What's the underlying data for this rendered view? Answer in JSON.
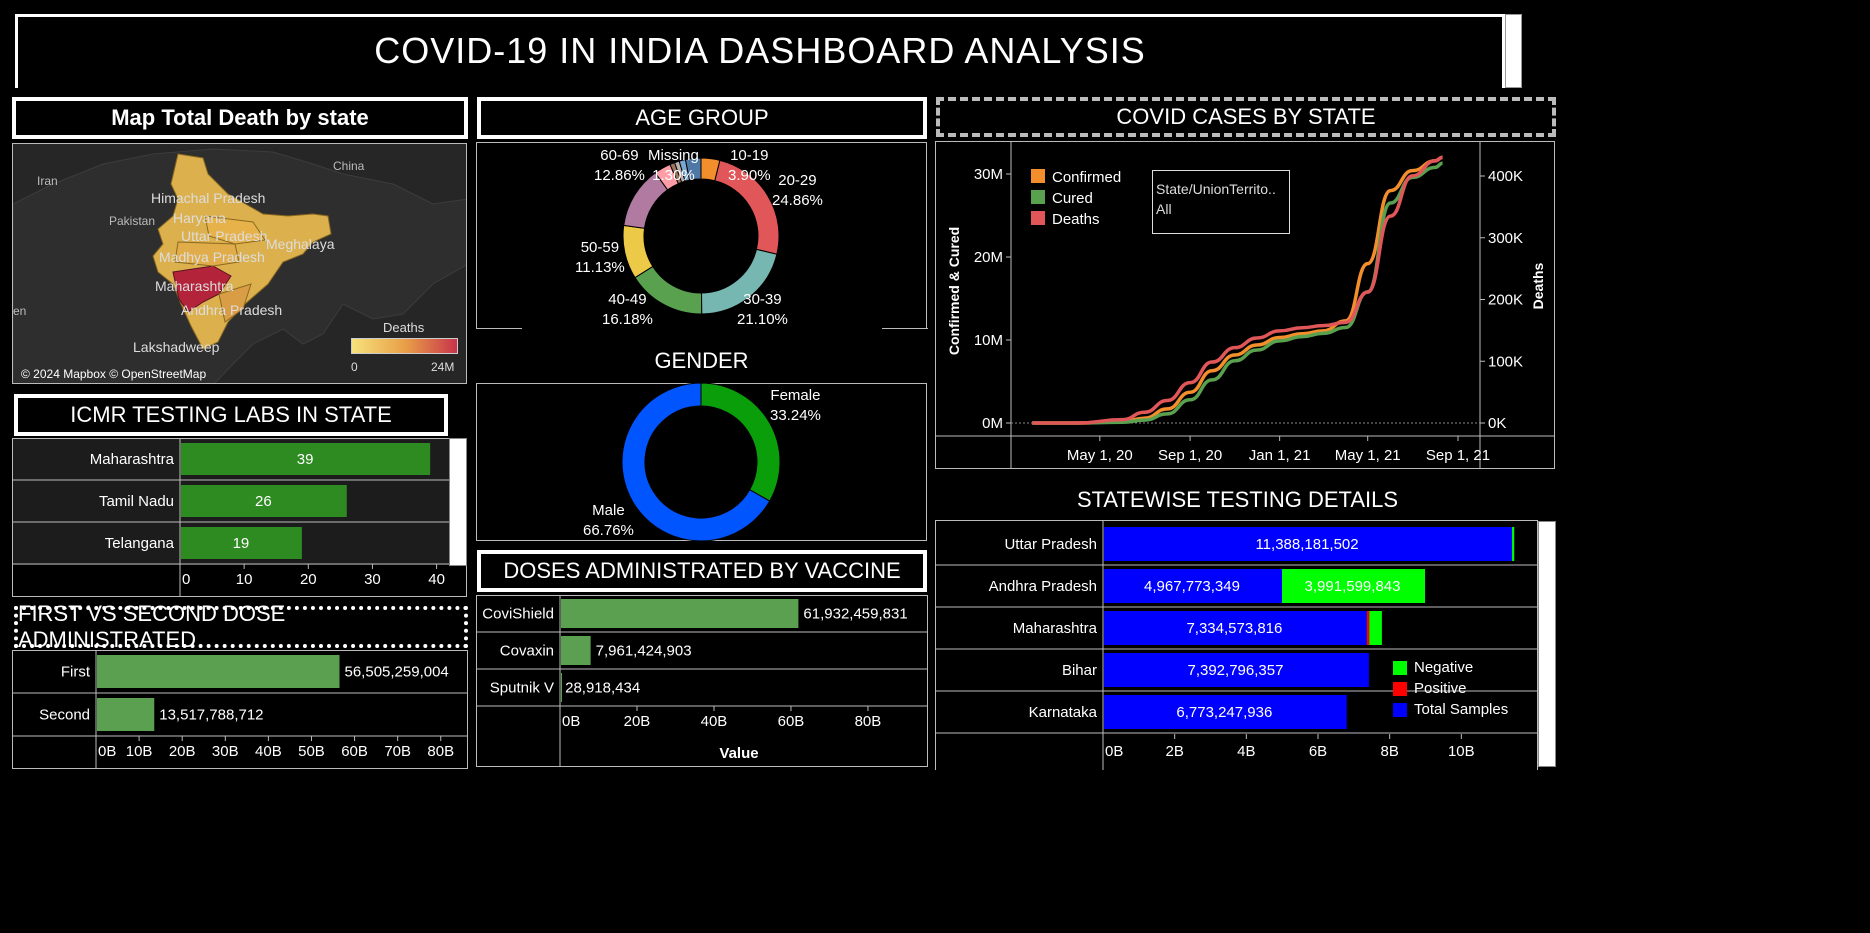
{
  "dashboard_title": "COVID-19 IN INDIA DASHBOARD ANALYSIS",
  "map_panel": {
    "title": "Map Total Death by state",
    "place_labels": [
      "Iran",
      "China",
      "Pakistan",
      "Himachal Pradesh",
      "Haryana",
      "Uttar Pradesh",
      "Meghalaya",
      "Madhya Pradesh",
      "Maharashtra",
      "Andhra Pradesh",
      "Lakshadweep",
      "en"
    ],
    "attribution": "© 2024 Mapbox © OpenStreetMap",
    "legend_title": "Deaths",
    "legend_min": "0",
    "legend_max": "24M"
  },
  "age_panel": {
    "title": "AGE GROUP",
    "slices": [
      {
        "label": "10-19",
        "pct": 3.9,
        "text": "3.90%",
        "color": "#f28e2b"
      },
      {
        "label": "20-29",
        "pct": 24.86,
        "text": "24.86%",
        "color": "#e15759"
      },
      {
        "label": "30-39",
        "pct": 21.1,
        "text": "21.10%",
        "color": "#76b7b2"
      },
      {
        "label": "40-49",
        "pct": 16.18,
        "text": "16.18%",
        "color": "#59a14f"
      },
      {
        "label": "50-59",
        "pct": 11.13,
        "text": "11.13%",
        "color": "#edc948"
      },
      {
        "label": "60-69",
        "pct": 12.86,
        "text": "12.86%",
        "color": "#b07aa1"
      },
      {
        "label": "",
        "pct": 3.47,
        "text": "",
        "color": "#ff9da7"
      },
      {
        "label": "",
        "pct": 1.0,
        "text": "",
        "color": "#9c755f"
      },
      {
        "label": "",
        "pct": 1.0,
        "text": "",
        "color": "#bab0ac"
      },
      {
        "label": "Missing",
        "pct": 1.3,
        "text": "1.30%",
        "color": "#7aa6d0"
      },
      {
        "label": "",
        "pct": 3.2,
        "text": "",
        "color": "#4e79a7"
      }
    ]
  },
  "gender_panel": {
    "title": "GENDER",
    "slices": [
      {
        "label": "Female",
        "pct": 33.24,
        "text": "33.24%",
        "color": "#0a9e0a"
      },
      {
        "label": "Male",
        "pct": 66.76,
        "text": "66.76%",
        "color": "#0055ff"
      }
    ]
  },
  "icmr_panel": {
    "title": "ICMR TESTING LABS IN STATE",
    "bar_color": "#2e8b22",
    "chart_data": {
      "type": "bar",
      "categories": [
        "Maharashtra",
        "Tamil Nadu",
        "Telangana"
      ],
      "values": [
        39,
        26,
        19
      ],
      "xlim": [
        0,
        41
      ],
      "ticks": [
        "0",
        "10",
        "20",
        "30",
        "40"
      ]
    }
  },
  "dose_panel": {
    "title": "FIRST VS SECOND DOSE ADMINISTRATED",
    "bar_color": "#5aa050",
    "chart_data": {
      "type": "bar",
      "categories": [
        "First",
        "Second"
      ],
      "values": [
        56505259004,
        13517788712
      ],
      "labels": [
        "56,505,259,004",
        "13,517,788,712"
      ],
      "xlim": [
        0,
        84000000000
      ],
      "ticks": [
        "0B",
        "10B",
        "20B",
        "30B",
        "40B",
        "50B",
        "60B",
        "70B",
        "80B"
      ]
    }
  },
  "vaccine_panel": {
    "title": "DOSES ADMINISTRATED BY VACCINE",
    "bar_color": "#5aa050",
    "chart_data": {
      "type": "bar",
      "categories": [
        "CoviShield",
        "Covaxin",
        "Sputnik V"
      ],
      "values": [
        61932459831,
        7961424903,
        28918434
      ],
      "labels": [
        "61,932,459,831",
        "7,961,424,903",
        "28,918,434"
      ],
      "xlim": [
        0,
        93000000000
      ],
      "ticks": [
        "0B",
        "20B",
        "40B",
        "60B",
        "80B"
      ],
      "xlabel": "Value"
    }
  },
  "cases_panel": {
    "title": "COVID CASES BY STATE",
    "filter_label": "State/UnionTerrito..",
    "filter_value": "All",
    "chart_data": {
      "type": "line",
      "x_ticks": [
        "May 1, 20",
        "Sep 1, 20",
        "Jan 1, 21",
        "May 1, 21",
        "Sep 1, 21"
      ],
      "x_tick_dates": [
        "2020-05-01",
        "2020-09-01",
        "2021-01-01",
        "2021-05-01",
        "2021-09-01"
      ],
      "ylabel": "Confirmed & Cured",
      "y2label": "Deaths",
      "y_ticks": [
        "0M",
        "10M",
        "20M",
        "30M"
      ],
      "y2_ticks": [
        "0K",
        "100K",
        "200K",
        "300K",
        "400K"
      ],
      "ylim": [
        0,
        30000000
      ],
      "y2lim": [
        0,
        400000
      ],
      "legend_position": "top-left",
      "series": [
        {
          "name": "Confirmed",
          "color": "#f28e2b",
          "axis": "left",
          "points": [
            [
              "2020-01-30",
              0
            ],
            [
              "2020-04-01",
              2000
            ],
            [
              "2020-06-01",
              190000
            ],
            [
              "2020-07-01",
              580000
            ],
            [
              "2020-08-01",
              1700000
            ],
            [
              "2020-09-01",
              3700000
            ],
            [
              "2020-10-01",
              6300000
            ],
            [
              "2020-11-01",
              8200000
            ],
            [
              "2020-12-01",
              9400000
            ],
            [
              "2021-01-01",
              10300000
            ],
            [
              "2021-02-01",
              10750000
            ],
            [
              "2021-03-01",
              11100000
            ],
            [
              "2021-04-01",
              12300000
            ],
            [
              "2021-05-01",
              19200000
            ],
            [
              "2021-06-01",
              28000000
            ],
            [
              "2021-07-01",
              30400000
            ],
            [
              "2021-08-01",
              31600000
            ],
            [
              "2021-08-11",
              32000000
            ]
          ]
        },
        {
          "name": "Cured",
          "color": "#59a14f",
          "axis": "left",
          "points": [
            [
              "2020-01-30",
              0
            ],
            [
              "2020-04-01",
              200
            ],
            [
              "2020-06-01",
              90000
            ],
            [
              "2020-07-01",
              350000
            ],
            [
              "2020-08-01",
              1100000
            ],
            [
              "2020-09-01",
              2800000
            ],
            [
              "2020-10-01",
              5200000
            ],
            [
              "2020-11-01",
              7500000
            ],
            [
              "2020-12-01",
              8800000
            ],
            [
              "2021-01-01",
              9900000
            ],
            [
              "2021-02-01",
              10400000
            ],
            [
              "2021-03-01",
              10800000
            ],
            [
              "2021-04-01",
              11500000
            ],
            [
              "2021-05-01",
              15800000
            ],
            [
              "2021-06-01",
              26500000
            ],
            [
              "2021-07-01",
              29600000
            ],
            [
              "2021-08-01",
              30800000
            ],
            [
              "2021-08-11",
              31300000
            ]
          ]
        },
        {
          "name": "Deaths",
          "color": "#e15759",
          "axis": "right",
          "points": [
            [
              "2020-01-30",
              0
            ],
            [
              "2020-04-01",
              60
            ],
            [
              "2020-06-01",
              5400
            ],
            [
              "2020-07-01",
              17400
            ],
            [
              "2020-08-01",
              36500
            ],
            [
              "2020-09-01",
              65300
            ],
            [
              "2020-10-01",
              98700
            ],
            [
              "2020-11-01",
              122000
            ],
            [
              "2020-12-01",
              137600
            ],
            [
              "2021-01-01",
              149200
            ],
            [
              "2021-02-01",
              154300
            ],
            [
              "2021-03-01",
              157600
            ],
            [
              "2021-04-01",
              163000
            ],
            [
              "2021-05-01",
              211900
            ],
            [
              "2021-06-01",
              335100
            ],
            [
              "2021-07-01",
              400300
            ],
            [
              "2021-08-01",
              424400
            ],
            [
              "2021-08-11",
              430200
            ]
          ]
        }
      ]
    }
  },
  "testing_panel": {
    "title": "STATEWISE TESTING DETAILS",
    "legend": [
      {
        "name": "Negative",
        "color": "#00ff00"
      },
      {
        "name": "Positive",
        "color": "#ff0000"
      },
      {
        "name": "Total Samples",
        "color": "#0000ff"
      }
    ],
    "chart_data": {
      "type": "bar",
      "stacked": true,
      "categories": [
        "Uttar Pradesh",
        "Andhra Pradesh",
        "Maharashtra",
        "Bihar",
        "Karnataka"
      ],
      "series": [
        {
          "name": "Total Samples",
          "color": "#0000ff",
          "values": [
            11388181502,
            4967773349,
            7334573816,
            7392796357,
            6773247936
          ],
          "labels": [
            "11,388,181,502",
            "4,967,773,349",
            "7,334,573,816",
            "7,392,796,357",
            "6,773,247,936"
          ]
        },
        {
          "name": "Positive",
          "color": "#ff0000",
          "values": [
            0,
            0,
            70000000,
            0,
            0
          ],
          "labels": [
            "",
            "",
            "",
            "",
            ""
          ]
        },
        {
          "name": "Negative",
          "color": "#00ff00",
          "values": [
            60000000,
            3991599843,
            350000000,
            0,
            0
          ],
          "labels": [
            "",
            "3,991,599,843",
            "",
            "",
            ""
          ]
        }
      ],
      "xlim": [
        0,
        12000000000
      ],
      "ticks": [
        "0B",
        "2B",
        "4B",
        "6B",
        "8B",
        "10B"
      ]
    }
  }
}
